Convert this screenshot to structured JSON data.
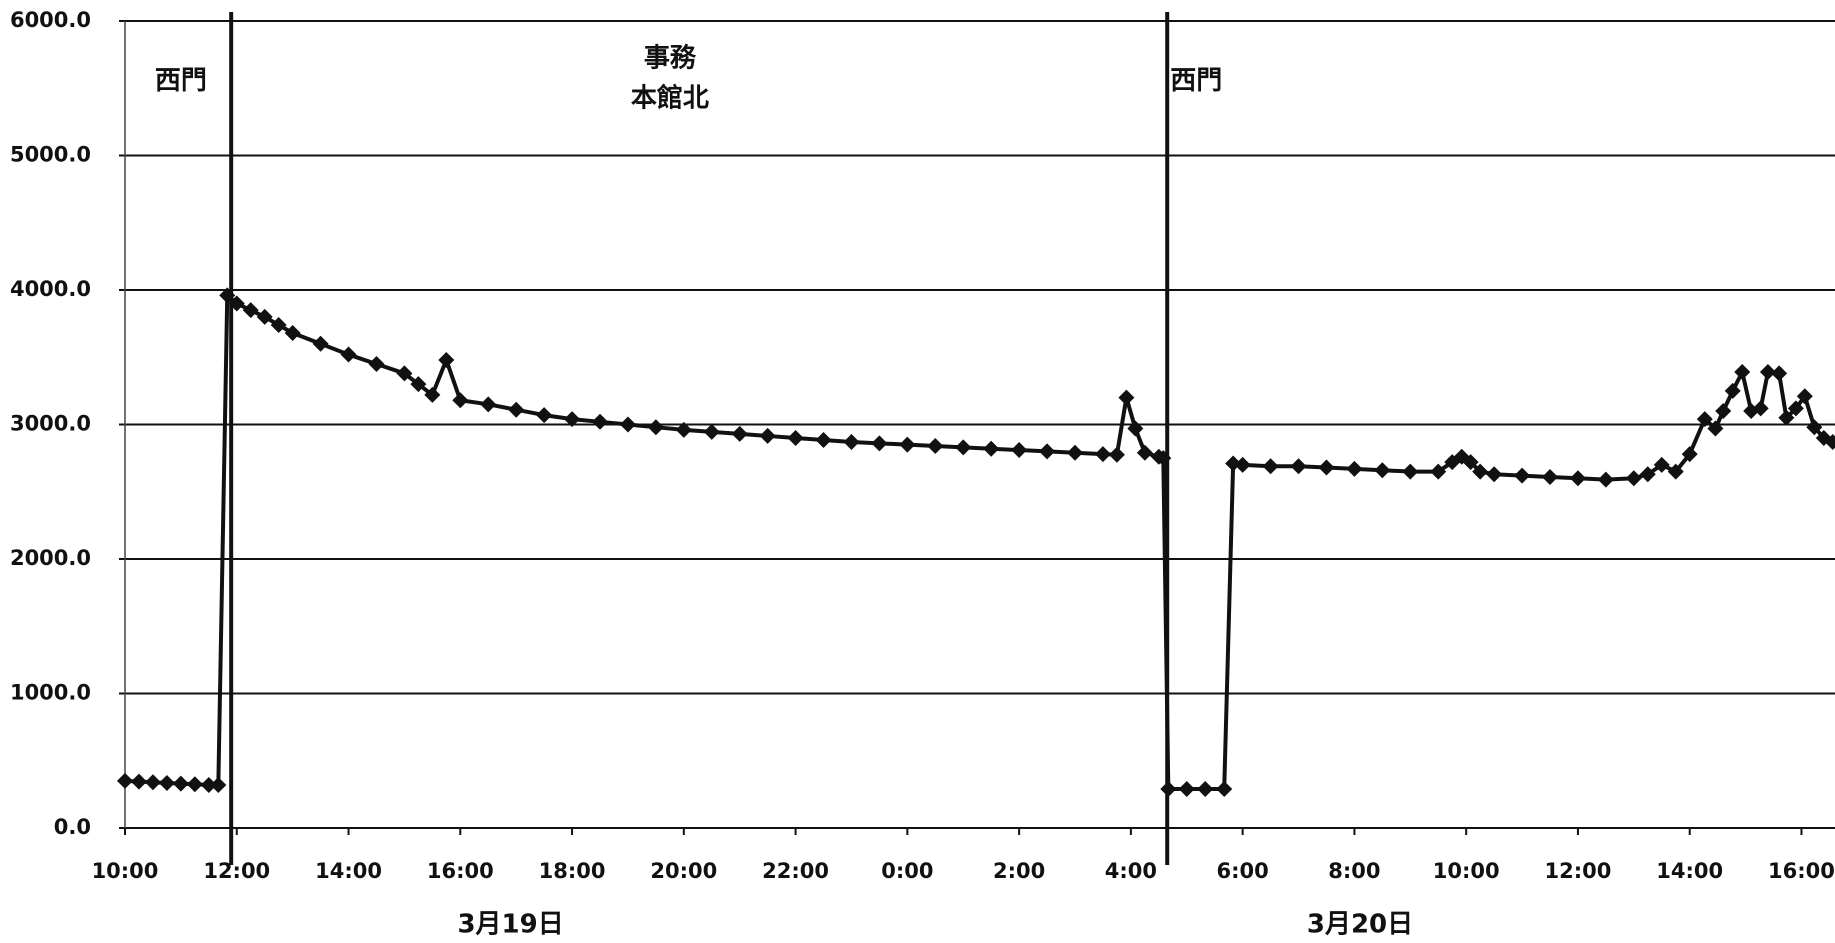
{
  "chart_data": {
    "type": "line",
    "color": "#111111",
    "marker": "diamond",
    "grid": true,
    "x": [
      10,
      10.25,
      10.5,
      10.75,
      11,
      11.25,
      11.5,
      11.67,
      11.83,
      12,
      12.25,
      12.5,
      12.75,
      13,
      13.5,
      14,
      14.5,
      15,
      15.25,
      15.5,
      15.75,
      16,
      16.5,
      17,
      17.5,
      18,
      18.5,
      19,
      19.5,
      20,
      20.5,
      21,
      21.5,
      22,
      22.5,
      23,
      23.5,
      24,
      24.5,
      25,
      25.5,
      26,
      26.5,
      27,
      27.5,
      27.75,
      27.92,
      28.08,
      28.25,
      28.5,
      28.58,
      28.67,
      29,
      29.33,
      29.67,
      29.83,
      30,
      30.5,
      31,
      31.5,
      32,
      32.5,
      33,
      33.5,
      33.75,
      33.92,
      34.08,
      34.25,
      34.5,
      35,
      35.5,
      36,
      36.5,
      37,
      37.25,
      37.5,
      37.75,
      38,
      38.27,
      38.46,
      38.6,
      38.77,
      38.94,
      39.1,
      39.27,
      39.4,
      39.6,
      39.73,
      39.9,
      40.06,
      40.23,
      40.4,
      40.56
    ],
    "values": [
      350,
      345,
      340,
      335,
      330,
      325,
      320,
      320,
      3960,
      3900,
      3850,
      3800,
      3740,
      3680,
      3600,
      3520,
      3450,
      3380,
      3300,
      3220,
      3480,
      3180,
      3150,
      3110,
      3070,
      3040,
      3020,
      3000,
      2980,
      2960,
      2945,
      2930,
      2915,
      2900,
      2885,
      2870,
      2860,
      2850,
      2840,
      2830,
      2820,
      2810,
      2800,
      2790,
      2780,
      2775,
      3200,
      2970,
      2790,
      2760,
      2750,
      290,
      290,
      290,
      290,
      2710,
      2700,
      2690,
      2690,
      2680,
      2670,
      2660,
      2650,
      2650,
      2720,
      2760,
      2720,
      2650,
      2630,
      2620,
      2610,
      2600,
      2590,
      2600,
      2630,
      2700,
      2650,
      2780,
      3040,
      2970,
      3100,
      3250,
      3390,
      3100,
      3120,
      3390,
      3380,
      3050,
      3120,
      3210,
      2980,
      2900,
      2870
    ],
    "xlim": [
      10,
      40.6
    ],
    "ylim": [
      0,
      6000
    ],
    "xticks": [
      {
        "value": 10,
        "label": "10:00"
      },
      {
        "value": 12,
        "label": "12:00"
      },
      {
        "value": 14,
        "label": "14:00"
      },
      {
        "value": 16,
        "label": "16:00"
      },
      {
        "value": 18,
        "label": "18:00"
      },
      {
        "value": 20,
        "label": "20:00"
      },
      {
        "value": 22,
        "label": "22:00"
      },
      {
        "value": 24,
        "label": "0:00"
      },
      {
        "value": 26,
        "label": "2:00"
      },
      {
        "value": 28,
        "label": "4:00"
      },
      {
        "value": 30,
        "label": "6:00"
      },
      {
        "value": 32,
        "label": "8:00"
      },
      {
        "value": 34,
        "label": "10:00"
      },
      {
        "value": 36,
        "label": "12:00"
      },
      {
        "value": 38,
        "label": "14:00"
      },
      {
        "value": 40,
        "label": "16:00"
      }
    ],
    "yticks": [
      {
        "value": 0,
        "label": "0.0"
      },
      {
        "value": 1000,
        "label": "1000.0"
      },
      {
        "value": 2000,
        "label": "2000.0"
      },
      {
        "value": 3000,
        "label": "3000.0"
      },
      {
        "value": 4000,
        "label": "4000.0"
      },
      {
        "value": 5000,
        "label": "5000.0"
      },
      {
        "value": 6000,
        "label": "6000.0"
      }
    ],
    "dividers": [
      11.9,
      28.65
    ],
    "annotations": [
      {
        "lines": [
          "西門"
        ],
        "x": 11.0,
        "y": 5550
      },
      {
        "lines": [
          "事務",
          "本館北"
        ],
        "x": 19.75,
        "y": 5570
      },
      {
        "lines": [
          "西門"
        ],
        "x": 29.17,
        "y": 5550
      }
    ],
    "date_labels": [
      {
        "text": "3月19日",
        "x": 16.9
      },
      {
        "text": "3月20日",
        "x": 32.1
      }
    ]
  }
}
